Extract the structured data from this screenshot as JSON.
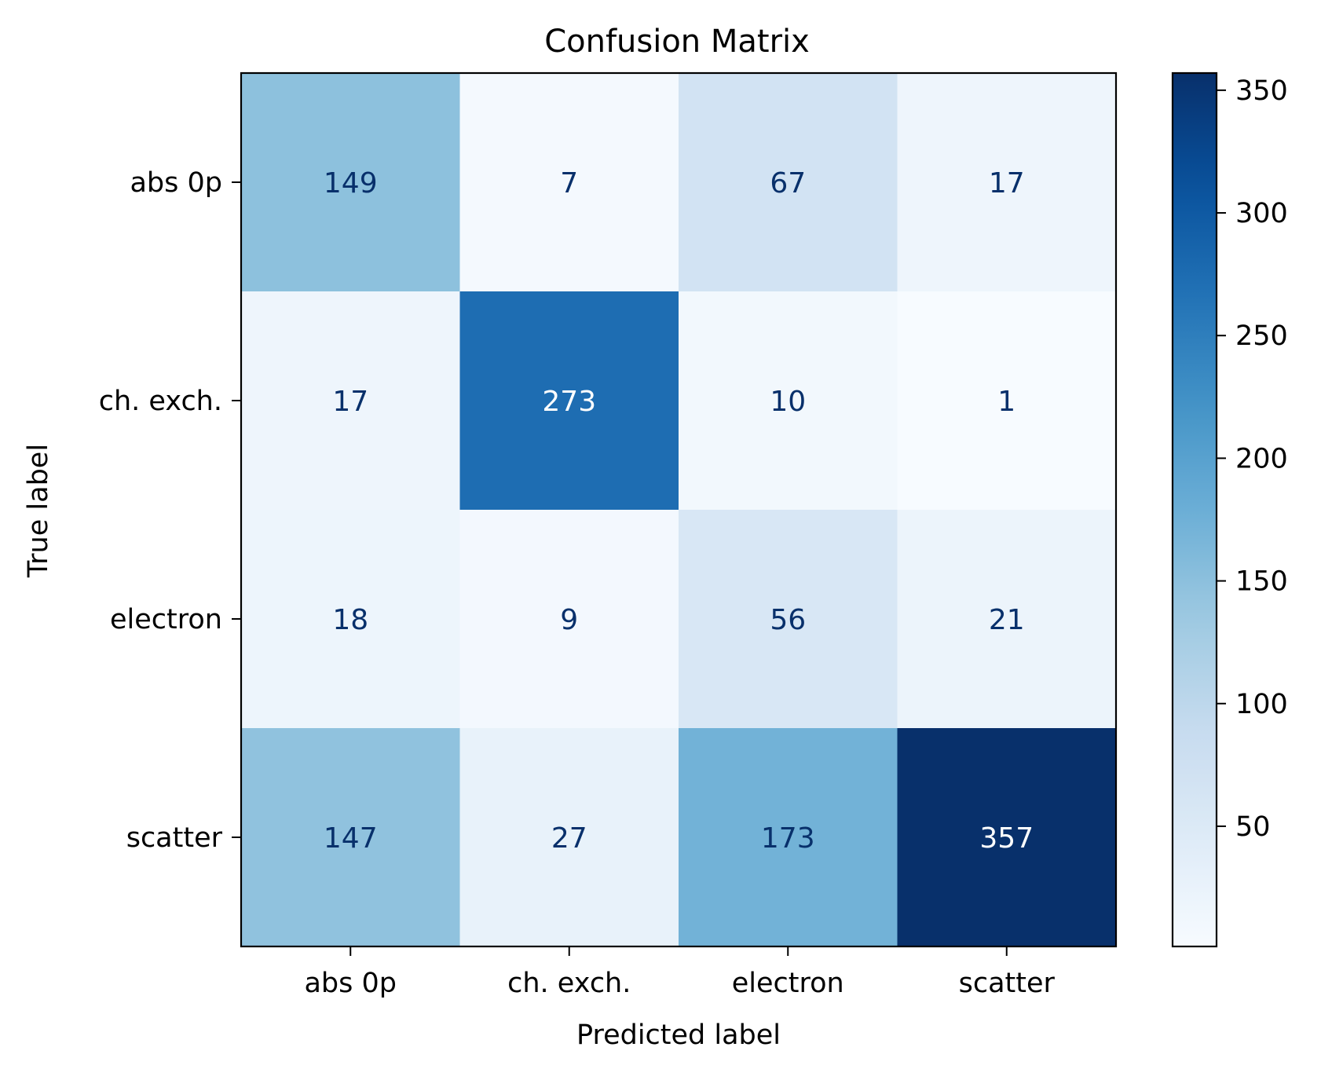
{
  "chart_data": {
    "type": "heatmap",
    "title": "Confusion Matrix",
    "xlabel": "Predicted label",
    "ylabel": "True label",
    "x_categories": [
      "abs 0p",
      "ch. exch.",
      "electron",
      "scatter"
    ],
    "y_categories": [
      "abs 0p",
      "ch. exch.",
      "electron",
      "scatter"
    ],
    "values": [
      [
        149,
        7,
        67,
        17
      ],
      [
        17,
        273,
        10,
        1
      ],
      [
        18,
        9,
        56,
        21
      ],
      [
        147,
        27,
        173,
        357
      ]
    ],
    "colorbar": {
      "colormap": "Blues",
      "range": [
        1,
        357
      ],
      "ticks": [
        50,
        100,
        150,
        200,
        250,
        300,
        350
      ]
    },
    "text_colors": {
      "dark": "#08306b",
      "light": "#ffffff"
    }
  }
}
